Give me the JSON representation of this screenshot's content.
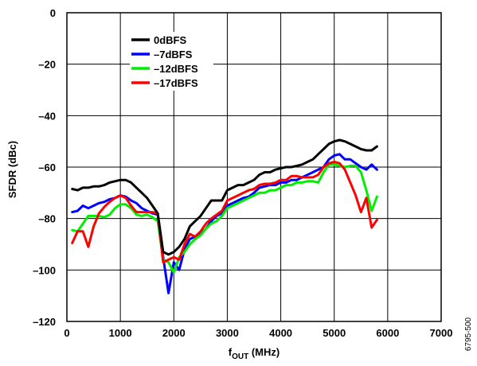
{
  "chart_data": {
    "type": "line",
    "xlabel_main": "f",
    "xlabel_sub": "OUT",
    "xlabel_unit": " (MHz)",
    "ylabel": "SFDR (dBc)",
    "xlim": [
      0,
      7000
    ],
    "ylim": [
      -120,
      0
    ],
    "xticks": [
      0,
      1000,
      2000,
      3000,
      4000,
      5000,
      6000,
      7000
    ],
    "yticks": [
      0,
      -20,
      -40,
      -60,
      -80,
      -100,
      -120
    ],
    "xtick_labels": [
      "0",
      "1000",
      "2000",
      "3000",
      "4000",
      "5000",
      "6000",
      "7000"
    ],
    "ytick_labels": [
      "0",
      "–20",
      "–40",
      "–60",
      "–80",
      "–100",
      "–120"
    ],
    "grid": true,
    "legend_position": "top-left",
    "figure_id": "6795-500",
    "series": [
      {
        "name": "0dBFS",
        "color": "#000000",
        "points": [
          [
            100,
            -68.5
          ],
          [
            200,
            -69
          ],
          [
            300,
            -68
          ],
          [
            400,
            -68
          ],
          [
            500,
            -67.5
          ],
          [
            600,
            -67.5
          ],
          [
            700,
            -67
          ],
          [
            800,
            -66
          ],
          [
            900,
            -65.5
          ],
          [
            1000,
            -65
          ],
          [
            1100,
            -65
          ],
          [
            1200,
            -66
          ],
          [
            1300,
            -68
          ],
          [
            1400,
            -70
          ],
          [
            1500,
            -72
          ],
          [
            1600,
            -75
          ],
          [
            1700,
            -78
          ],
          [
            1800,
            -93
          ],
          [
            1900,
            -94
          ],
          [
            2000,
            -93
          ],
          [
            2100,
            -91
          ],
          [
            2200,
            -88
          ],
          [
            2300,
            -83
          ],
          [
            2400,
            -81
          ],
          [
            2500,
            -79
          ],
          [
            2600,
            -76
          ],
          [
            2700,
            -73
          ],
          [
            2800,
            -73
          ],
          [
            2900,
            -73
          ],
          [
            3000,
            -69
          ],
          [
            3100,
            -68
          ],
          [
            3200,
            -67
          ],
          [
            3300,
            -67
          ],
          [
            3400,
            -66
          ],
          [
            3500,
            -65
          ],
          [
            3600,
            -63
          ],
          [
            3700,
            -62
          ],
          [
            3800,
            -62
          ],
          [
            3900,
            -61
          ],
          [
            4000,
            -60.5
          ],
          [
            4100,
            -60
          ],
          [
            4200,
            -60
          ],
          [
            4300,
            -59.5
          ],
          [
            4400,
            -59
          ],
          [
            4500,
            -58
          ],
          [
            4600,
            -57
          ],
          [
            4700,
            -55
          ],
          [
            4800,
            -53
          ],
          [
            4900,
            -51
          ],
          [
            5000,
            -50
          ],
          [
            5100,
            -49.5
          ],
          [
            5200,
            -50
          ],
          [
            5300,
            -51
          ],
          [
            5400,
            -52
          ],
          [
            5500,
            -53
          ],
          [
            5600,
            -53.5
          ],
          [
            5700,
            -53.5
          ],
          [
            5800,
            -52
          ]
        ]
      },
      {
        "name": "–7dBFS",
        "color": "#0000ff",
        "points": [
          [
            100,
            -77.5
          ],
          [
            200,
            -77
          ],
          [
            300,
            -75
          ],
          [
            400,
            -76
          ],
          [
            500,
            -75
          ],
          [
            600,
            -74
          ],
          [
            700,
            -73.5
          ],
          [
            800,
            -72.5
          ],
          [
            900,
            -72
          ],
          [
            1000,
            -71
          ],
          [
            1100,
            -71.5
          ],
          [
            1200,
            -73
          ],
          [
            1300,
            -74
          ],
          [
            1400,
            -76
          ],
          [
            1500,
            -77
          ],
          [
            1600,
            -78
          ],
          [
            1700,
            -78.5
          ],
          [
            1800,
            -95
          ],
          [
            1900,
            -109
          ],
          [
            2000,
            -97
          ],
          [
            2100,
            -100
          ],
          [
            2200,
            -92
          ],
          [
            2300,
            -88
          ],
          [
            2400,
            -87
          ],
          [
            2500,
            -86
          ],
          [
            2600,
            -84
          ],
          [
            2700,
            -81
          ],
          [
            2800,
            -79
          ],
          [
            2900,
            -78
          ],
          [
            3000,
            -75
          ],
          [
            3100,
            -74
          ],
          [
            3200,
            -73
          ],
          [
            3300,
            -72
          ],
          [
            3400,
            -71.5
          ],
          [
            3500,
            -70
          ],
          [
            3600,
            -68
          ],
          [
            3700,
            -67.5
          ],
          [
            3800,
            -67
          ],
          [
            3900,
            -67
          ],
          [
            4000,
            -66
          ],
          [
            4100,
            -66
          ],
          [
            4200,
            -65
          ],
          [
            4300,
            -65
          ],
          [
            4400,
            -64
          ],
          [
            4500,
            -63
          ],
          [
            4600,
            -62
          ],
          [
            4700,
            -61
          ],
          [
            4800,
            -60
          ],
          [
            4900,
            -57
          ],
          [
            5000,
            -55.5
          ],
          [
            5100,
            -55
          ],
          [
            5200,
            -57
          ],
          [
            5300,
            -57
          ],
          [
            5400,
            -58.5
          ],
          [
            5500,
            -60
          ],
          [
            5600,
            -61
          ],
          [
            5700,
            -59
          ],
          [
            5800,
            -61
          ]
        ]
      },
      {
        "name": "–12dBFS",
        "color": "#00ee00",
        "points": [
          [
            100,
            -84.5
          ],
          [
            200,
            -85
          ],
          [
            300,
            -82
          ],
          [
            400,
            -79
          ],
          [
            500,
            -79
          ],
          [
            600,
            -79
          ],
          [
            700,
            -79.5
          ],
          [
            800,
            -78.5
          ],
          [
            900,
            -76
          ],
          [
            1000,
            -74.5
          ],
          [
            1100,
            -74.5
          ],
          [
            1200,
            -76
          ],
          [
            1300,
            -78.5
          ],
          [
            1400,
            -79
          ],
          [
            1500,
            -78.5
          ],
          [
            1600,
            -79.5
          ],
          [
            1700,
            -81
          ],
          [
            1800,
            -96
          ],
          [
            1900,
            -97
          ],
          [
            2000,
            -101
          ],
          [
            2100,
            -95
          ],
          [
            2200,
            -93
          ],
          [
            2300,
            -90
          ],
          [
            2400,
            -88
          ],
          [
            2500,
            -86.5
          ],
          [
            2600,
            -84
          ],
          [
            2700,
            -82
          ],
          [
            2800,
            -81
          ],
          [
            2900,
            -79
          ],
          [
            3000,
            -76
          ],
          [
            3100,
            -75
          ],
          [
            3200,
            -74
          ],
          [
            3300,
            -73
          ],
          [
            3400,
            -72
          ],
          [
            3500,
            -71
          ],
          [
            3600,
            -70
          ],
          [
            3700,
            -70
          ],
          [
            3800,
            -69
          ],
          [
            3900,
            -69
          ],
          [
            4000,
            -68
          ],
          [
            4100,
            -67
          ],
          [
            4200,
            -67
          ],
          [
            4300,
            -66
          ],
          [
            4400,
            -66
          ],
          [
            4500,
            -65.5
          ],
          [
            4600,
            -65.5
          ],
          [
            4700,
            -66
          ],
          [
            4800,
            -62
          ],
          [
            4900,
            -59
          ],
          [
            5000,
            -59
          ],
          [
            5100,
            -59.5
          ],
          [
            5200,
            -60
          ],
          [
            5300,
            -59.5
          ],
          [
            5400,
            -59.5
          ],
          [
            5500,
            -62
          ],
          [
            5600,
            -69
          ],
          [
            5700,
            -77
          ],
          [
            5800,
            -71.5
          ]
        ]
      },
      {
        "name": "–17dBFS",
        "color": "#ff0000",
        "points": [
          [
            100,
            -89.5
          ],
          [
            200,
            -85
          ],
          [
            300,
            -85
          ],
          [
            400,
            -91
          ],
          [
            500,
            -83
          ],
          [
            600,
            -78
          ],
          [
            700,
            -75.5
          ],
          [
            800,
            -73.5
          ],
          [
            900,
            -72
          ],
          [
            1000,
            -71
          ],
          [
            1100,
            -72
          ],
          [
            1200,
            -75
          ],
          [
            1300,
            -77.5
          ],
          [
            1400,
            -77.5
          ],
          [
            1500,
            -77.5
          ],
          [
            1600,
            -77.5
          ],
          [
            1700,
            -78
          ],
          [
            1800,
            -97
          ],
          [
            1900,
            -96
          ],
          [
            2000,
            -95
          ],
          [
            2100,
            -96
          ],
          [
            2200,
            -90
          ],
          [
            2300,
            -86
          ],
          [
            2400,
            -87
          ],
          [
            2500,
            -85
          ],
          [
            2600,
            -82
          ],
          [
            2700,
            -80
          ],
          [
            2800,
            -78.5
          ],
          [
            2900,
            -77
          ],
          [
            3000,
            -73
          ],
          [
            3100,
            -72
          ],
          [
            3200,
            -71
          ],
          [
            3300,
            -70
          ],
          [
            3400,
            -69
          ],
          [
            3500,
            -68.5
          ],
          [
            3600,
            -67
          ],
          [
            3700,
            -66.5
          ],
          [
            3800,
            -66.5
          ],
          [
            3900,
            -66
          ],
          [
            4000,
            -65
          ],
          [
            4100,
            -65
          ],
          [
            4200,
            -63.5
          ],
          [
            4300,
            -63.5
          ],
          [
            4400,
            -64
          ],
          [
            4500,
            -64
          ],
          [
            4600,
            -64
          ],
          [
            4700,
            -63
          ],
          [
            4800,
            -60
          ],
          [
            4900,
            -58.5
          ],
          [
            5000,
            -58
          ],
          [
            5100,
            -58.5
          ],
          [
            5200,
            -61
          ],
          [
            5300,
            -66
          ],
          [
            5400,
            -71
          ],
          [
            5500,
            -77.5
          ],
          [
            5600,
            -72
          ],
          [
            5700,
            -83.5
          ],
          [
            5800,
            -80.5
          ]
        ]
      }
    ]
  }
}
